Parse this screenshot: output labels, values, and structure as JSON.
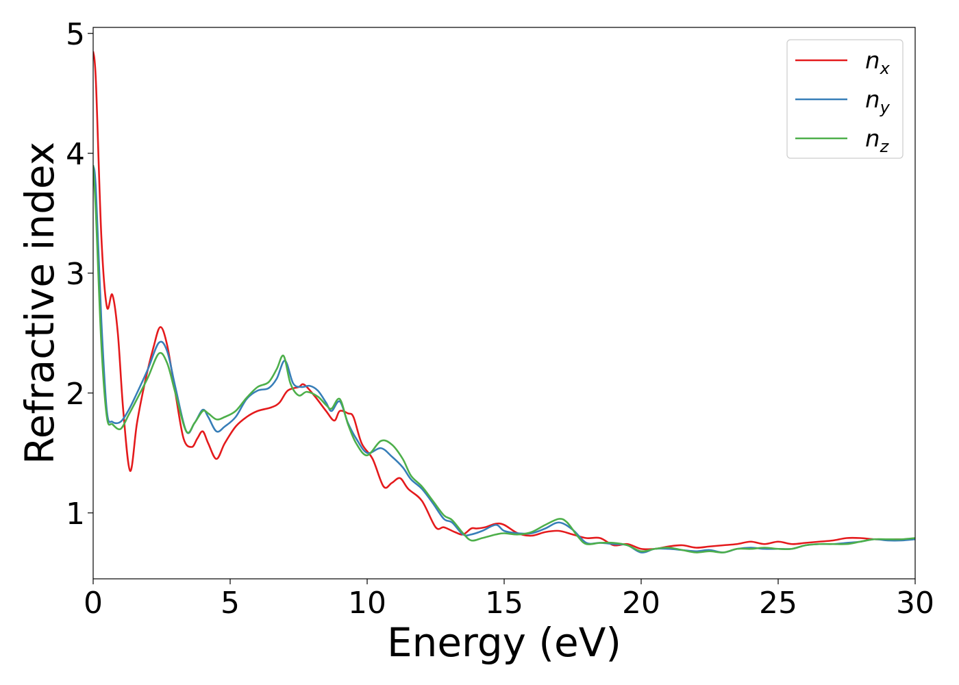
{
  "chart_data": {
    "type": "line",
    "title": "",
    "xlabel": "Energy (eV)",
    "ylabel": "Refractive index",
    "xlim": [
      0,
      30
    ],
    "ylim": [
      0.45,
      5.05
    ],
    "xticks": [
      "0",
      "5",
      "10",
      "15",
      "20",
      "25",
      "30"
    ],
    "yticks": [
      "1",
      "2",
      "3",
      "4",
      "5"
    ],
    "grid": false,
    "legend_position": "top-right",
    "colors": {
      "nx": "#e41a1c",
      "ny": "#377eb8",
      "nz": "#4daf4a"
    },
    "legend": [
      {
        "key": "nx",
        "base": "n",
        "sub": "x"
      },
      {
        "key": "ny",
        "base": "n",
        "sub": "y"
      },
      {
        "key": "nz",
        "base": "n",
        "sub": "z"
      }
    ],
    "series": [
      {
        "key": "nx",
        "x": [
          0,
          0.1,
          0.3,
          0.5,
          0.7,
          0.9,
          1.1,
          1.35,
          1.6,
          1.9,
          2.2,
          2.45,
          2.7,
          3.0,
          3.3,
          3.6,
          3.8,
          4.0,
          4.2,
          4.5,
          4.8,
          5.2,
          5.6,
          6.0,
          6.5,
          6.8,
          7.1,
          7.5,
          7.7,
          8.1,
          8.5,
          8.8,
          9.0,
          9.3,
          9.5,
          9.8,
          10.2,
          10.6,
          10.9,
          11.2,
          11.5,
          12.0,
          12.5,
          12.8,
          13.2,
          13.5,
          13.8,
          14.0,
          14.3,
          14.7,
          15.0,
          15.5,
          16.0,
          16.5,
          17.0,
          17.5,
          18.0,
          18.5,
          19.0,
          19.5,
          20.0,
          20.5,
          21.0,
          21.5,
          22.0,
          22.5,
          23.0,
          23.5,
          24.0,
          24.5,
          25.0,
          25.5,
          26.0,
          26.5,
          27.0,
          27.5,
          28.0,
          28.5,
          29.0,
          29.5,
          30.0
        ],
        "values": [
          4.85,
          4.6,
          3.3,
          2.72,
          2.82,
          2.5,
          1.85,
          1.35,
          1.75,
          2.1,
          2.38,
          2.55,
          2.4,
          2.0,
          1.62,
          1.55,
          1.62,
          1.68,
          1.58,
          1.45,
          1.58,
          1.72,
          1.8,
          1.85,
          1.88,
          1.92,
          2.02,
          2.05,
          2.07,
          1.97,
          1.85,
          1.77,
          1.85,
          1.83,
          1.8,
          1.58,
          1.45,
          1.22,
          1.25,
          1.29,
          1.2,
          1.1,
          0.88,
          0.88,
          0.84,
          0.82,
          0.87,
          0.87,
          0.88,
          0.91,
          0.9,
          0.83,
          0.81,
          0.84,
          0.85,
          0.82,
          0.79,
          0.79,
          0.73,
          0.74,
          0.7,
          0.7,
          0.72,
          0.73,
          0.71,
          0.72,
          0.73,
          0.74,
          0.76,
          0.74,
          0.76,
          0.74,
          0.75,
          0.76,
          0.77,
          0.79,
          0.79,
          0.78,
          0.78,
          0.78,
          0.78
        ]
      },
      {
        "key": "ny",
        "x": [
          0,
          0.1,
          0.3,
          0.5,
          0.7,
          1.0,
          1.3,
          1.6,
          2.0,
          2.4,
          2.7,
          3.0,
          3.4,
          3.7,
          4.0,
          4.2,
          4.5,
          4.8,
          5.2,
          5.6,
          6.0,
          6.4,
          6.7,
          7.0,
          7.3,
          7.6,
          7.9,
          8.2,
          8.5,
          8.7,
          9.0,
          9.3,
          9.6,
          10.0,
          10.5,
          10.9,
          11.3,
          11.6,
          12.0,
          12.4,
          12.8,
          13.1,
          13.5,
          13.8,
          14.2,
          14.7,
          15.0,
          15.5,
          16.0,
          16.5,
          17.0,
          17.5,
          18.0,
          18.5,
          19.0,
          19.5,
          20.0,
          20.5,
          21.0,
          21.5,
          22.0,
          22.5,
          23.0,
          23.5,
          24.0,
          24.5,
          25.0,
          25.5,
          26.0,
          26.5,
          27.0,
          27.5,
          28.0,
          28.5,
          29.0,
          29.5,
          30.0
        ],
        "values": [
          3.9,
          3.7,
          2.6,
          1.85,
          1.76,
          1.76,
          1.86,
          2.0,
          2.2,
          2.42,
          2.35,
          2.05,
          1.68,
          1.75,
          1.86,
          1.8,
          1.68,
          1.72,
          1.8,
          1.95,
          2.02,
          2.04,
          2.12,
          2.27,
          2.08,
          2.05,
          2.06,
          2.02,
          1.92,
          1.85,
          1.93,
          1.75,
          1.62,
          1.5,
          1.54,
          1.47,
          1.38,
          1.28,
          1.2,
          1.08,
          0.95,
          0.92,
          0.82,
          0.82,
          0.85,
          0.9,
          0.85,
          0.83,
          0.83,
          0.87,
          0.92,
          0.86,
          0.75,
          0.75,
          0.74,
          0.73,
          0.67,
          0.7,
          0.7,
          0.69,
          0.68,
          0.69,
          0.67,
          0.7,
          0.71,
          0.7,
          0.7,
          0.7,
          0.73,
          0.74,
          0.74,
          0.75,
          0.76,
          0.78,
          0.77,
          0.77,
          0.78
        ]
      },
      {
        "key": "nz",
        "x": [
          0,
          0.1,
          0.3,
          0.5,
          0.7,
          1.0,
          1.3,
          1.6,
          2.0,
          2.4,
          2.7,
          3.0,
          3.4,
          3.7,
          4.0,
          4.2,
          4.5,
          4.8,
          5.2,
          5.6,
          6.0,
          6.4,
          6.7,
          6.95,
          7.2,
          7.5,
          7.8,
          8.2,
          8.5,
          8.7,
          9.0,
          9.3,
          9.6,
          10.0,
          10.5,
          10.9,
          11.3,
          11.6,
          12.0,
          12.4,
          12.8,
          13.1,
          13.5,
          13.8,
          14.2,
          14.7,
          15.0,
          15.5,
          16.0,
          16.5,
          17.0,
          17.3,
          17.7,
          18.0,
          18.5,
          19.0,
          19.5,
          20.0,
          20.5,
          21.0,
          21.5,
          22.0,
          22.5,
          23.0,
          23.5,
          24.0,
          24.5,
          25.0,
          25.5,
          26.0,
          26.5,
          27.0,
          27.5,
          28.0,
          28.5,
          29.0,
          29.5,
          30.0
        ],
        "values": [
          3.9,
          3.5,
          2.4,
          1.8,
          1.74,
          1.7,
          1.82,
          1.95,
          2.13,
          2.33,
          2.25,
          2.0,
          1.68,
          1.75,
          1.85,
          1.83,
          1.78,
          1.8,
          1.85,
          1.96,
          2.05,
          2.09,
          2.2,
          2.31,
          2.08,
          1.98,
          2.01,
          1.97,
          1.9,
          1.87,
          1.95,
          1.74,
          1.58,
          1.48,
          1.6,
          1.57,
          1.45,
          1.31,
          1.22,
          1.1,
          0.98,
          0.94,
          0.83,
          0.77,
          0.79,
          0.82,
          0.83,
          0.82,
          0.84,
          0.9,
          0.95,
          0.92,
          0.8,
          0.74,
          0.75,
          0.75,
          0.73,
          0.68,
          0.7,
          0.71,
          0.69,
          0.67,
          0.68,
          0.67,
          0.7,
          0.7,
          0.71,
          0.7,
          0.7,
          0.73,
          0.74,
          0.74,
          0.74,
          0.76,
          0.78,
          0.78,
          0.78,
          0.79
        ]
      }
    ]
  }
}
